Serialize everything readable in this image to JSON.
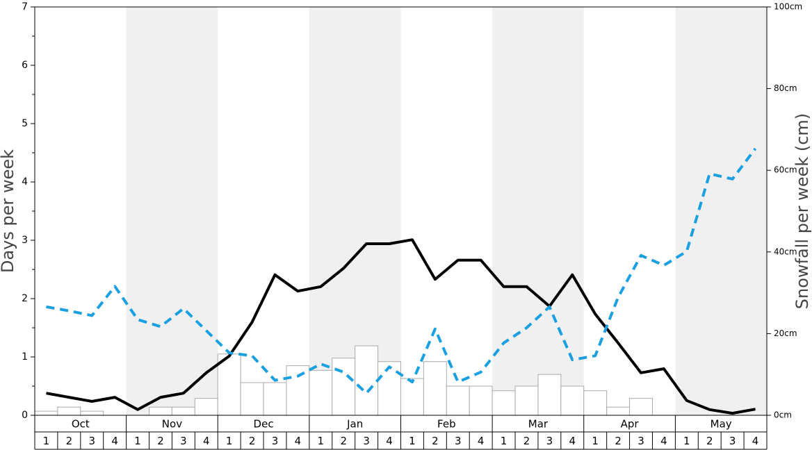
{
  "chart_data": {
    "type": "bar",
    "ylabel": "Days per week",
    "y2label": "Snowfall per week (cm)",
    "groups": [
      "Oct",
      "Nov",
      "Dec",
      "Jan",
      "Feb",
      "Mar",
      "Apr",
      "May"
    ],
    "categories": [
      "1",
      "2",
      "3",
      "4",
      "1",
      "2",
      "3",
      "4",
      "1",
      "2",
      "3",
      "4",
      "1",
      "2",
      "3",
      "4",
      "1",
      "2",
      "3",
      "4",
      "1",
      "2",
      "3",
      "4",
      "1",
      "2",
      "3",
      "4",
      "1",
      "2",
      "3",
      "4"
    ],
    "values": [
      0.07,
      0.14,
      0.07,
      0,
      0,
      0.14,
      0.14,
      0.29,
      1.05,
      0.56,
      0.56,
      0.85,
      0.77,
      0.98,
      1.19,
      0.92,
      0.63,
      0.92,
      0.5,
      0.5,
      0.42,
      0.5,
      0.7,
      0.5,
      0.42,
      0.14,
      0.29,
      0,
      0,
      0,
      0,
      0
    ],
    "color": "#ffffff",
    "edgecolor": "#aaaaaa",
    "band_color": "#f0f0f0",
    "lines": [
      {
        "color": "#000000",
        "style": "solid",
        "axis": "y2",
        "values": [
          5.4,
          4.4,
          3.4,
          4.4,
          1.4,
          4.4,
          5.4,
          10.4,
          14.5,
          22.8,
          34.4,
          30.4,
          31.5,
          36,
          42,
          42,
          43,
          33.3,
          38,
          38,
          31.5,
          31.5,
          26.7,
          34.4,
          24.8,
          17.7,
          10.4,
          11.4,
          3.6,
          1.4,
          0.5,
          1.5
        ]
      },
      {
        "color": "#1a9fe0",
        "style": "dashed",
        "axis": "y",
        "values": [
          1.86,
          1.79,
          1.71,
          2.21,
          1.64,
          1.52,
          1.83,
          1.45,
          1.07,
          1.02,
          0.6,
          0.67,
          0.88,
          0.74,
          0.38,
          0.83,
          0.57,
          1.48,
          0.57,
          0.74,
          1.24,
          1.5,
          1.86,
          0.95,
          1.02,
          2.02,
          2.74,
          2.57,
          2.81,
          4.14,
          4.05,
          4.57
        ]
      }
    ],
    "ylim": [
      0,
      7
    ],
    "yticks": [
      0,
      1,
      2,
      3,
      4,
      5,
      6,
      7
    ],
    "yminorticks": [
      0.5,
      1.5,
      2.5,
      3.5,
      4.5,
      5.5,
      6.5
    ],
    "y2lim": [
      0,
      100
    ],
    "y2ticks": [
      {
        "value": 0,
        "label": "0cm"
      },
      {
        "value": 20,
        "label": "20cm"
      },
      {
        "value": 40,
        "label": "40cm"
      },
      {
        "value": 60,
        "label": "60cm"
      },
      {
        "value": 80,
        "label": "80cm"
      },
      {
        "value": 100,
        "label": "100cm"
      }
    ]
  }
}
